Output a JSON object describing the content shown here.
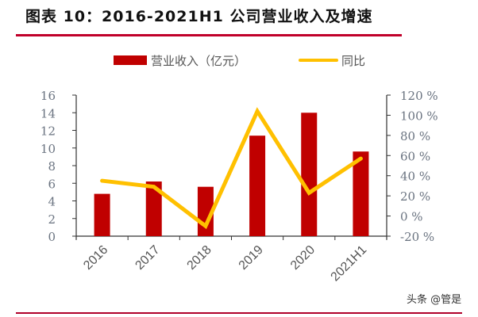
{
  "title": "图表 10：2016-2021H1 公司营业收入及增速",
  "watermark": "头条 @管是",
  "colors": {
    "bar": "#c00000",
    "line": "#ffc000",
    "rule": "#c0002a",
    "axis": "#333333"
  },
  "legend": {
    "bar_label": "营业收入（亿元）",
    "line_label": "同比"
  },
  "chart_data": {
    "type": "bar+line",
    "title": "2016-2021H1 公司营业收入及增速",
    "categories": [
      "2016",
      "2017",
      "2018",
      "2019",
      "2020",
      "2021H1"
    ],
    "series": [
      {
        "name": "营业收入（亿元）",
        "type": "bar",
        "axis": "left",
        "values": [
          4.8,
          6.2,
          5.6,
          11.4,
          14.0,
          9.6
        ]
      },
      {
        "name": "同比",
        "type": "line",
        "axis": "right",
        "unit": "%",
        "values": [
          35,
          29,
          -10,
          104,
          23,
          57
        ]
      }
    ],
    "left_axis": {
      "min": 0,
      "max": 16,
      "step": 2,
      "ticks": [
        "0",
        "2",
        "4",
        "6",
        "8",
        "10",
        "12",
        "14",
        "16"
      ]
    },
    "right_axis": {
      "min": -20,
      "max": 120,
      "step": 20,
      "ticks": [
        "-20 %",
        "0 %",
        "20 %",
        "40 %",
        "60 %",
        "80 %",
        "100 %",
        "120 %"
      ]
    },
    "xlabel": "",
    "ylabel": "",
    "grid": false,
    "legend_position": "top"
  }
}
